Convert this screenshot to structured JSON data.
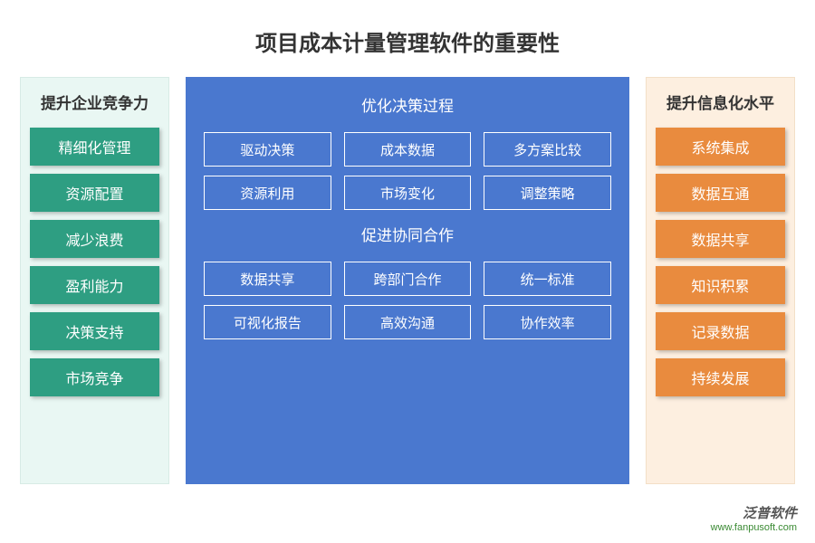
{
  "title": "项目成本计量管理软件的重要性",
  "colors": {
    "left_bg": "#e9f7f3",
    "left_border": "#d7ebe5",
    "left_btn": "#2e9e82",
    "center_bg": "#4a78cf",
    "right_bg": "#fdefe0",
    "right_border": "#f3dfc7",
    "right_btn": "#e98b3e"
  },
  "left": {
    "header": "提升企业竞争力",
    "items": [
      "精细化管理",
      "资源配置",
      "减少浪费",
      "盈利能力",
      "决策支持",
      "市场竞争"
    ]
  },
  "center": {
    "sections": [
      {
        "header": "优化决策过程",
        "items": [
          "驱动决策",
          "成本数据",
          "多方案比较",
          "资源利用",
          "市场变化",
          "调整策略"
        ]
      },
      {
        "header": "促进协同合作",
        "items": [
          "数据共享",
          "跨部门合作",
          "统一标准",
          "可视化报告",
          "高效沟通",
          "协作效率"
        ]
      }
    ]
  },
  "right": {
    "header": "提升信息化水平",
    "items": [
      "系统集成",
      "数据互通",
      "数据共享",
      "知识积累",
      "记录数据",
      "持续发展"
    ]
  },
  "footer": {
    "brand": "泛普软件",
    "url": "www.fanpusoft.com"
  }
}
